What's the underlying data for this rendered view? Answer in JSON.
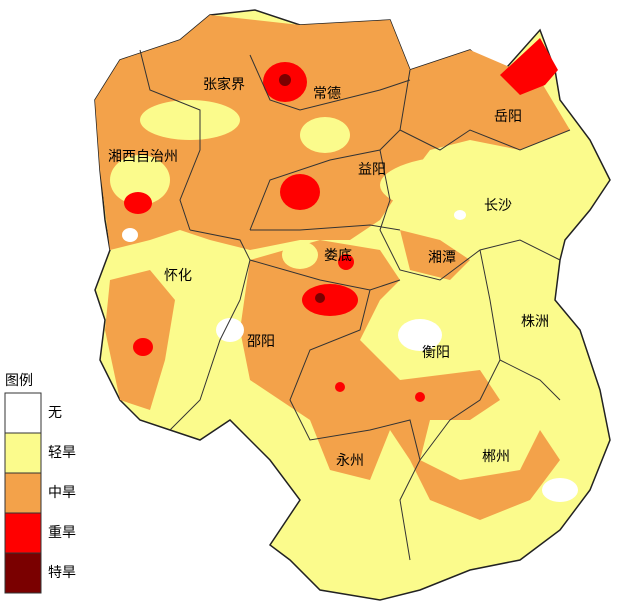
{
  "map": {
    "cities": [
      "张家界",
      "常德",
      "岳阳",
      "湘西自治州",
      "益阳",
      "长沙",
      "怀化",
      "娄底",
      "湘潭",
      "株洲",
      "邵阳",
      "衡阳",
      "永州",
      "郴州"
    ],
    "legend": {
      "title": "图例",
      "items": [
        {
          "name": "无",
          "color": "#ffffff"
        },
        {
          "name": "轻旱",
          "color": "#fbfb8c"
        },
        {
          "name": "中旱",
          "color": "#f3a24a"
        },
        {
          "name": "重旱",
          "color": "#ff0000"
        },
        {
          "name": "特旱",
          "color": "#7a0000"
        }
      ]
    }
  }
}
